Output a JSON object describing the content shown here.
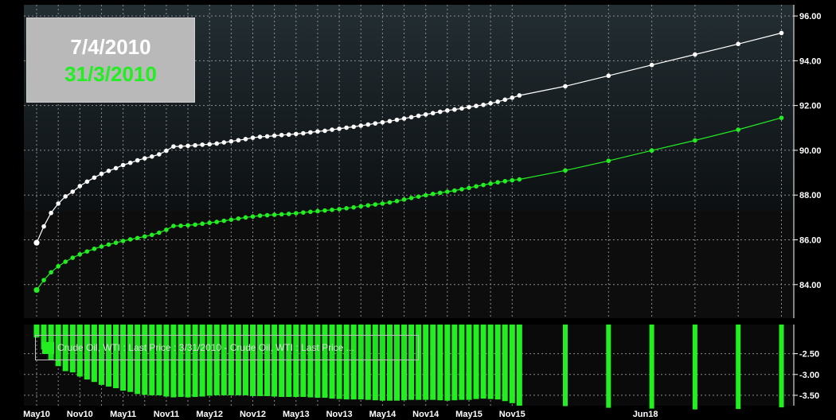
{
  "date_box": {
    "date_current": "7/4/2010",
    "date_prior": "31/3/2010"
  },
  "legend": {
    "label": "Crude Oil, WTI : Last Price : 3/31/2010 - Crude Oil, WTI : Last Price ..."
  },
  "colors": {
    "current_curve": "#ffffff",
    "prior_curve": "#22ee22",
    "spread_bars": "#22ee22",
    "tick_text": "#ffffff",
    "grid": "#8c8c8c"
  },
  "chart_data": [
    {
      "type": "line",
      "title": "",
      "xlabel": "",
      "ylabel": "",
      "x_ticks": [
        "May10",
        "Nov10",
        "May11",
        "Nov11",
        "May12",
        "Nov12",
        "May13",
        "Nov13",
        "May14",
        "Nov14",
        "May15",
        "Nov15",
        "Jun18"
      ],
      "y_ticks": [
        "84.00",
        "86.00",
        "88.00",
        "90.00",
        "92.00",
        "94.00",
        "96.00"
      ],
      "ylim": [
        82.5,
        96.5
      ],
      "grid": true,
      "x_axis_note": "monthly futures contracts from May10 to Dec15, then December contracts Dec16 to Dec21",
      "series": [
        {
          "name": "7/4/2010",
          "x": [
            "May10",
            "Jun10",
            "Jul10",
            "Aug10",
            "Sep10",
            "Oct10",
            "Nov10",
            "Dec10",
            "Jan11",
            "Feb11",
            "Mar11",
            "Apr11",
            "May11",
            "Jun11",
            "Jul11",
            "Aug11",
            "Sep11",
            "Oct11",
            "Nov11",
            "Dec11",
            "Jan12",
            "Feb12",
            "Mar12",
            "Apr12",
            "May12",
            "Jun12",
            "Jul12",
            "Aug12",
            "Sep12",
            "Oct12",
            "Nov12",
            "Dec12",
            "Jan13",
            "Feb13",
            "Mar13",
            "Apr13",
            "May13",
            "Jun13",
            "Jul13",
            "Aug13",
            "Sep13",
            "Oct13",
            "Nov13",
            "Dec13",
            "Jan14",
            "Feb14",
            "Mar14",
            "Apr14",
            "May14",
            "Jun14",
            "Jul14",
            "Aug14",
            "Sep14",
            "Oct14",
            "Nov14",
            "Dec14",
            "Jan15",
            "Feb15",
            "Mar15",
            "Apr15",
            "May15",
            "Jun15",
            "Jul15",
            "Aug15",
            "Sep15",
            "Oct15",
            "Nov15",
            "Dec15",
            "Dec16",
            "Dec17",
            "Dec18",
            "Dec19",
            "Dec20",
            "Dec21"
          ],
          "values": [
            85.87,
            86.6,
            87.2,
            87.62,
            87.94,
            88.15,
            88.4,
            88.6,
            88.78,
            88.95,
            89.08,
            89.2,
            89.34,
            89.44,
            89.55,
            89.64,
            89.72,
            89.82,
            89.98,
            90.17,
            90.17,
            90.2,
            90.22,
            90.25,
            90.27,
            90.3,
            90.35,
            90.4,
            90.45,
            90.5,
            90.56,
            90.6,
            90.62,
            90.65,
            90.68,
            90.7,
            90.73,
            90.76,
            90.8,
            90.84,
            90.87,
            90.92,
            90.96,
            91.01,
            91.05,
            91.1,
            91.15,
            91.2,
            91.25,
            91.3,
            91.36,
            91.42,
            91.48,
            91.54,
            91.6,
            91.66,
            91.72,
            91.78,
            91.82,
            91.87,
            91.93,
            91.98,
            92.03,
            92.1,
            92.17,
            92.26,
            92.35,
            92.45,
            92.86,
            93.33,
            93.81,
            94.28,
            94.75,
            95.24
          ]
        },
        {
          "name": "31/3/2010",
          "x": [
            "May10",
            "Jun10",
            "Jul10",
            "Aug10",
            "Sep10",
            "Oct10",
            "Nov10",
            "Dec10",
            "Jan11",
            "Feb11",
            "Mar11",
            "Apr11",
            "May11",
            "Jun11",
            "Jul11",
            "Aug11",
            "Sep11",
            "Oct11",
            "Nov11",
            "Dec11",
            "Jan12",
            "Feb12",
            "Mar12",
            "Apr12",
            "May12",
            "Jun12",
            "Jul12",
            "Aug12",
            "Sep12",
            "Oct12",
            "Nov12",
            "Dec12",
            "Jan13",
            "Feb13",
            "Mar13",
            "Apr13",
            "May13",
            "Jun13",
            "Jul13",
            "Aug13",
            "Sep13",
            "Oct13",
            "Nov13",
            "Dec13",
            "Jan14",
            "Feb14",
            "Mar14",
            "Apr14",
            "May14",
            "Jun14",
            "Jul14",
            "Aug14",
            "Sep14",
            "Oct14",
            "Nov14",
            "Dec14",
            "Jan15",
            "Feb15",
            "Mar15",
            "Apr15",
            "May15",
            "Jun15",
            "Jul15",
            "Aug15",
            "Sep15",
            "Oct15",
            "Nov15",
            "Dec15",
            "Dec16",
            "Dec17",
            "Dec18",
            "Dec19",
            "Dec20",
            "Dec21"
          ],
          "values": [
            83.76,
            84.2,
            84.55,
            84.82,
            85.02,
            85.2,
            85.35,
            85.48,
            85.6,
            85.7,
            85.79,
            85.87,
            85.95,
            86.02,
            86.08,
            86.15,
            86.22,
            86.32,
            86.45,
            86.62,
            86.63,
            86.65,
            86.68,
            86.72,
            86.76,
            86.8,
            86.85,
            86.9,
            86.95,
            87.0,
            87.04,
            87.08,
            87.1,
            87.12,
            87.14,
            87.16,
            87.19,
            87.22,
            87.25,
            87.28,
            87.31,
            87.34,
            87.37,
            87.41,
            87.45,
            87.5,
            87.54,
            87.58,
            87.62,
            87.67,
            87.73,
            87.8,
            87.87,
            87.93,
            87.99,
            88.05,
            88.1,
            88.15,
            88.2,
            88.26,
            88.32,
            88.39,
            88.45,
            88.51,
            88.57,
            88.62,
            88.66,
            88.7,
            89.1,
            89.53,
            89.99,
            90.44,
            90.92,
            91.45
          ]
        }
      ]
    },
    {
      "type": "bar",
      "title": "",
      "xlabel": "",
      "ylabel": "",
      "y_ticks": [
        "-2.50",
        "-3.00",
        "-3.50"
      ],
      "ylim": [
        -3.75,
        -1.8
      ],
      "grid": true,
      "legend_position": "top-left",
      "series": [
        {
          "name": "Crude Oil, WTI : Last Price : 3/31/2010 - Crude Oil, WTI : Last Price ...",
          "values": [
            -2.11,
            -2.4,
            -2.65,
            -2.8,
            -2.92,
            -2.95,
            -3.05,
            -3.12,
            -3.18,
            -3.25,
            -3.29,
            -3.33,
            -3.39,
            -3.42,
            -3.47,
            -3.49,
            -3.5,
            -3.5,
            -3.53,
            -3.55,
            -3.54,
            -3.55,
            -3.54,
            -3.53,
            -3.51,
            -3.5,
            -3.5,
            -3.5,
            -3.5,
            -3.5,
            -3.52,
            -3.52,
            -3.52,
            -3.53,
            -3.54,
            -3.54,
            -3.54,
            -3.54,
            -3.55,
            -3.56,
            -3.56,
            -3.58,
            -3.59,
            -3.6,
            -3.6,
            -3.6,
            -3.61,
            -3.62,
            -3.63,
            -3.63,
            -3.63,
            -3.62,
            -3.61,
            -3.61,
            -3.61,
            -3.61,
            -3.62,
            -3.63,
            -3.62,
            -3.61,
            -3.61,
            -3.59,
            -3.58,
            -3.59,
            -3.6,
            -3.64,
            -3.69,
            -3.75,
            -3.76,
            -3.8,
            -3.82,
            -3.84,
            -3.83,
            -3.79
          ]
        }
      ]
    }
  ]
}
